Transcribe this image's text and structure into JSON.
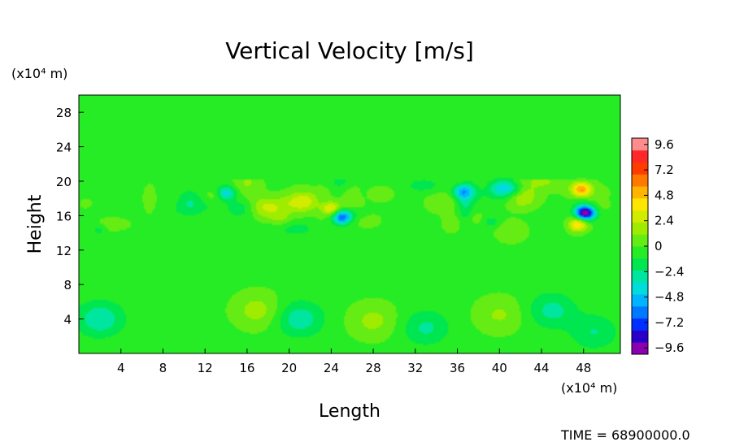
{
  "chart_data": {
    "type": "heatmap",
    "title": "Vertical Velocity [m/s]",
    "xlabel": "Length",
    "ylabel": "Height",
    "x_unit": "(x10⁴ m)",
    "y_unit": "(x10⁴ m)",
    "xlim": [
      0,
      51.5
    ],
    "ylim": [
      0,
      30
    ],
    "x_ticks": [
      4,
      8,
      12,
      16,
      20,
      24,
      28,
      32,
      36,
      40,
      44,
      48
    ],
    "y_ticks": [
      4,
      8,
      12,
      16,
      20,
      24,
      28
    ],
    "colorbar": {
      "range": [
        -10.2,
        10.2
      ],
      "tick_values": [
        9.6,
        7.2,
        4.8,
        2.4,
        0,
        -2.4,
        -4.8,
        -7.2,
        -9.6
      ],
      "tick_labels": [
        "9.6",
        "7.2",
        "4.8",
        "2.4",
        "0",
        "−2.4",
        "−4.8",
        "−7.2",
        "−9.6"
      ],
      "colors": [
        "#8a00b0",
        "#2a00c8",
        "#0030ff",
        "#0078ff",
        "#00b4ff",
        "#00dcdc",
        "#00e6a0",
        "#00e650",
        "#26ec26",
        "#64ec14",
        "#a0ec00",
        "#d2ec00",
        "#ffe600",
        "#ffb400",
        "#ff7800",
        "#ff3c00",
        "#ff2828",
        "#ff8c8c"
      ]
    },
    "background_value": -0.3,
    "features": [
      {
        "kind": "downdraft",
        "x": 48.2,
        "y": 16.3,
        "value": -9.6
      },
      {
        "kind": "updraft",
        "x": 47.5,
        "y": 15.0,
        "value": 4.6
      },
      {
        "kind": "updraft",
        "x": 47.8,
        "y": 19.0,
        "value": 5.2
      },
      {
        "kind": "downdraft",
        "x": 25.0,
        "y": 15.8,
        "value": -6.2
      },
      {
        "kind": "updraft",
        "x": 24.0,
        "y": 16.8,
        "value": 4.0
      },
      {
        "kind": "updraft",
        "x": 21.0,
        "y": 17.5,
        "value": 3.0
      },
      {
        "kind": "downdraft",
        "x": 14.0,
        "y": 18.6,
        "value": -4.0
      },
      {
        "kind": "downdraft",
        "x": 36.5,
        "y": 18.8,
        "value": -4.2
      },
      {
        "kind": "downdraft",
        "x": 40.5,
        "y": 19.0,
        "value": -3.5
      },
      {
        "kind": "updraft",
        "x": 18.0,
        "y": 17.0,
        "value": 2.6
      },
      {
        "kind": "updraft",
        "x": 42.0,
        "y": 18.0,
        "value": 2.2
      },
      {
        "kind": "downdraft",
        "x": 2.0,
        "y": 4.0,
        "value": -3.0
      },
      {
        "kind": "updraft",
        "x": 17.0,
        "y": 5.0,
        "value": 2.0
      },
      {
        "kind": "downdraft",
        "x": 21.0,
        "y": 4.0,
        "value": -2.8
      },
      {
        "kind": "updraft",
        "x": 28.0,
        "y": 3.8,
        "value": 1.8
      },
      {
        "kind": "downdraft",
        "x": 33.0,
        "y": 3.0,
        "value": -2.2
      },
      {
        "kind": "updraft",
        "x": 40.0,
        "y": 4.5,
        "value": 1.6
      },
      {
        "kind": "downdraft",
        "x": 45.0,
        "y": 5.0,
        "value": -2.4
      },
      {
        "kind": "downdraft",
        "x": 49.0,
        "y": 2.5,
        "value": -2.0
      }
    ]
  },
  "time_label": "TIME = 68900000.0"
}
